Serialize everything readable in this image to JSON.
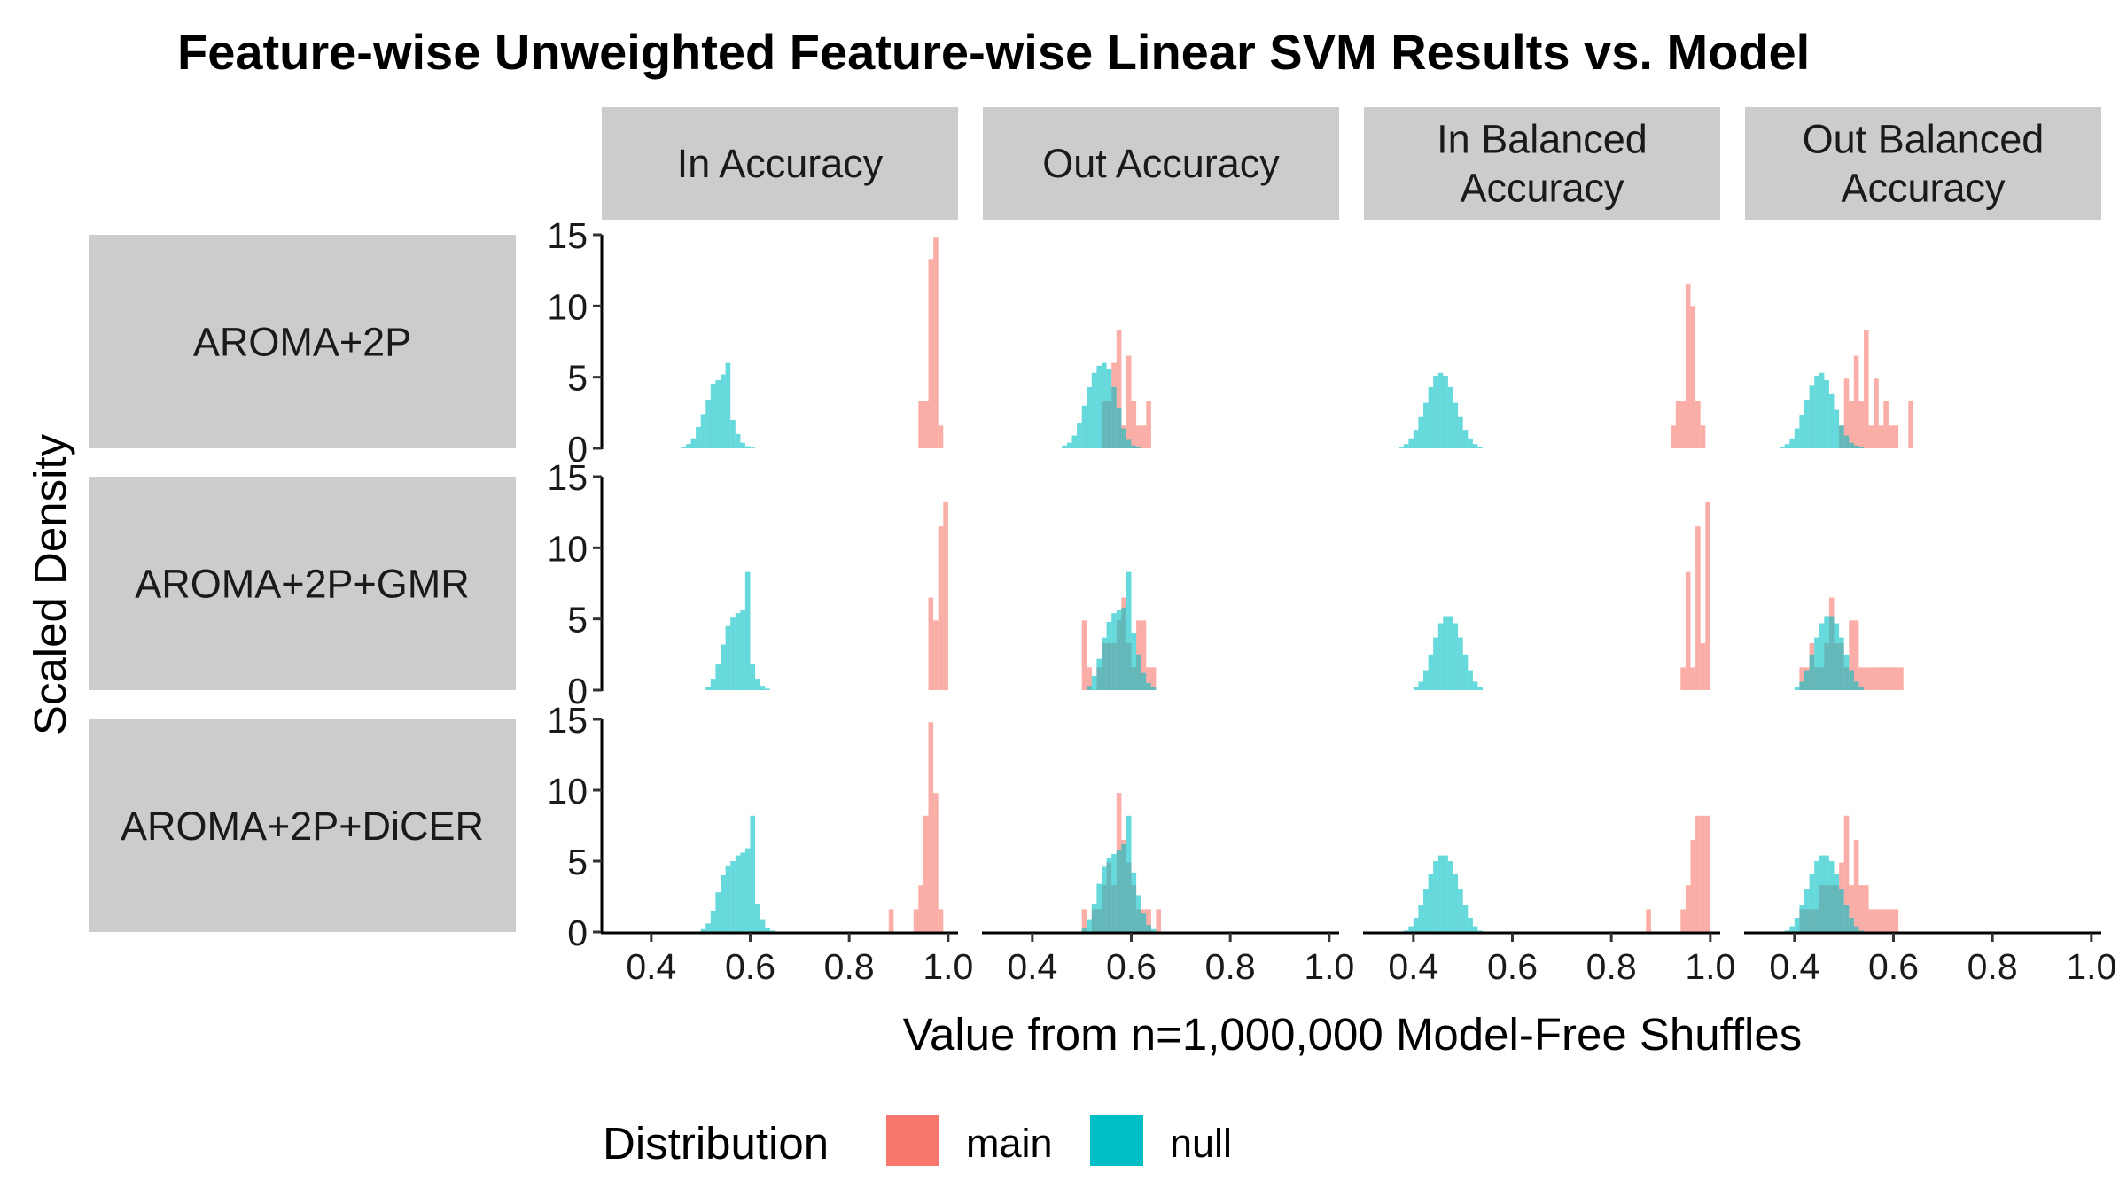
{
  "chart_data": {
    "type": "histogram",
    "title": "Feature-wise Unweighted Feature-wise Linear SVM Results vs. Model",
    "xlabel": "Value from n=1,000,000 Model-Free Shuffles",
    "ylabel": "Scaled Density",
    "xlim": [
      0.3,
      1.02
    ],
    "ylim": [
      0,
      15
    ],
    "x_ticks": [
      "0.4",
      "0.6",
      "0.8",
      "1.0"
    ],
    "y_ticks": [
      "0",
      "5",
      "10",
      "15"
    ],
    "column_facets": [
      "In Accuracy",
      "Out Accuracy",
      "In Balanced Accuracy",
      "Out Balanced Accuracy"
    ],
    "row_facets": [
      "AROMA+2P",
      "AROMA+2P+GMR",
      "AROMA+2P+DiCER"
    ],
    "legend": {
      "title": "Distribution",
      "position": "bottom",
      "entries": [
        {
          "name": "main",
          "color": "#F8766D"
        },
        {
          "name": "null",
          "color": "#00BFC4"
        }
      ]
    },
    "panels": [
      {
        "row": "AROMA+2P",
        "histograms": [
          {
            "column": "In Accuracy",
            "null": {
              "start": 0.46,
              "width": 0.01,
              "values": [
                0.1,
                0.3,
                0.7,
                1.5,
                2.4,
                3.4,
                4.5,
                4.8,
                5.2,
                6.0,
                2.0,
                1.0,
                0.4,
                0.15,
                0.05
              ]
            },
            "main": {
              "start": 0.94,
              "width": 0.01,
              "values": [
                3.3,
                3.3,
                13.3,
                14.8,
                1.6
              ]
            }
          },
          {
            "column": "Out Accuracy",
            "null": {
              "start": 0.46,
              "width": 0.01,
              "values": [
                0.2,
                0.4,
                0.9,
                1.8,
                3.0,
                4.3,
                5.3,
                5.8,
                6.0,
                5.6,
                4.3,
                2.8,
                1.4,
                0.6,
                0.2,
                0.1
              ]
            },
            "main": {
              "start": 0.54,
              "width": 0.01,
              "values": [
                3.3,
                3.3,
                6.0,
                8.3,
                1.6,
                6.5,
                3.3,
                1.6,
                1.6,
                3.3
              ]
            }
          },
          {
            "column": "In Balanced Accuracy",
            "null": {
              "start": 0.37,
              "width": 0.01,
              "values": [
                0.1,
                0.3,
                0.7,
                1.3,
                2.2,
                3.2,
                4.3,
                5.1,
                5.3,
                5.1,
                4.3,
                3.2,
                2.2,
                1.3,
                0.7,
                0.3,
                0.1
              ]
            },
            "main": {
              "start": 0.92,
              "width": 0.01,
              "values": [
                1.6,
                3.3,
                3.3,
                11.5,
                10.0,
                3.3,
                1.6
              ]
            }
          },
          {
            "column": "Out Balanced Accuracy",
            "null": {
              "start": 0.37,
              "width": 0.01,
              "values": [
                0.1,
                0.3,
                0.7,
                1.4,
                2.3,
                3.4,
                4.4,
                5.1,
                5.3,
                4.8,
                3.8,
                2.7,
                1.6,
                0.9,
                0.4,
                0.2,
                0.1
              ]
            },
            "main": {
              "start": 0.49,
              "width": 0.01,
              "values": [
                1.6,
                4.9,
                3.3,
                6.5,
                3.3,
                8.3,
                1.6,
                4.9,
                1.6,
                3.3,
                1.6,
                1.6,
                0.0,
                0.0,
                3.3
              ]
            }
          }
        ]
      },
      {
        "row": "AROMA+2P+GMR",
        "histograms": [
          {
            "column": "In Accuracy",
            "null": {
              "start": 0.51,
              "width": 0.01,
              "values": [
                0.2,
                0.8,
                1.8,
                3.2,
                4.5,
                5.1,
                5.4,
                5.6,
                8.3,
                1.8,
                0.8,
                0.3,
                0.1
              ]
            },
            "main": {
              "start": 0.96,
              "width": 0.01,
              "values": [
                6.5,
                4.9,
                11.5,
                13.2
              ]
            }
          },
          {
            "column": "Out Accuracy",
            "null": {
              "start": 0.51,
              "width": 0.01,
              "values": [
                0.3,
                1.0,
                2.2,
                3.7,
                4.8,
                5.4,
                5.6,
                5.8,
                8.3,
                4.0,
                2.5,
                1.2,
                0.5,
                0.2
              ]
            },
            "main": {
              "start": 0.5,
              "width": 0.01,
              "values": [
                4.9,
                1.6,
                0.0,
                1.6,
                3.3,
                3.3,
                3.3,
                4.9,
                6.5,
                3.3,
                1.6,
                4.9,
                4.9,
                1.6,
                1.6
              ]
            }
          },
          {
            "column": "In Balanced Accuracy",
            "null": {
              "start": 0.4,
              "width": 0.01,
              "values": [
                0.2,
                0.6,
                1.4,
                2.5,
                3.7,
                4.7,
                5.2,
                5.2,
                4.7,
                3.7,
                2.5,
                1.4,
                0.6,
                0.2
              ]
            },
            "main": {
              "start": 0.94,
              "width": 0.01,
              "values": [
                1.6,
                8.3,
                1.6,
                11.5,
                3.3,
                13.2
              ]
            }
          },
          {
            "column": "Out Balanced Accuracy",
            "null": {
              "start": 0.4,
              "width": 0.01,
              "values": [
                0.2,
                0.6,
                1.4,
                2.5,
                3.7,
                4.7,
                5.2,
                5.2,
                4.7,
                3.7,
                2.5,
                1.4,
                0.6,
                0.2
              ]
            },
            "main": {
              "start": 0.4,
              "width": 0.01,
              "values": [
                0.0,
                1.6,
                1.6,
                3.3,
                1.6,
                1.6,
                3.3,
                6.5,
                3.3,
                3.3,
                1.6,
                4.9,
                4.9,
                1.6,
                1.6,
                1.6,
                1.6,
                1.6,
                1.6,
                1.6,
                1.6,
                1.6
              ]
            }
          }
        ]
      },
      {
        "row": "AROMA+2P+DiCER",
        "histograms": [
          {
            "column": "In Accuracy",
            "null": {
              "start": 0.5,
              "width": 0.01,
              "values": [
                0.2,
                0.6,
                1.5,
                2.8,
                4.0,
                4.7,
                5.0,
                5.4,
                5.6,
                5.9,
                8.2,
                2.0,
                0.9,
                0.3,
                0.1
              ]
            },
            "main": {
              "start": 0.88,
              "width": 0.01,
              "values": [
                1.6,
                0.0,
                0.0,
                0.0,
                0.0,
                1.6,
                3.3,
                8.2,
                14.8,
                9.8,
                1.6
              ]
            }
          },
          {
            "column": "Out Accuracy",
            "null": {
              "start": 0.5,
              "width": 0.01,
              "values": [
                0.3,
                0.9,
                2.0,
                3.4,
                4.6,
                5.2,
                5.5,
                5.8,
                6.2,
                8.2,
                4.2,
                2.6,
                1.3,
                0.5,
                0.2
              ]
            },
            "main": {
              "start": 0.5,
              "width": 0.01,
              "values": [
                1.6,
                0.0,
                1.6,
                1.6,
                3.3,
                4.9,
                3.3,
                9.8,
                6.5,
                4.9,
                3.3,
                1.6,
                1.6,
                1.6,
                0.0,
                1.6
              ]
            }
          },
          {
            "column": "In Balanced Accuracy",
            "null": {
              "start": 0.38,
              "width": 0.01,
              "values": [
                0.1,
                0.4,
                1.0,
                1.9,
                3.0,
                4.1,
                5.0,
                5.4,
                5.4,
                5.0,
                4.1,
                3.0,
                1.9,
                1.0,
                0.4,
                0.1
              ]
            },
            "main": {
              "start": 0.87,
              "width": 0.01,
              "values": [
                1.6,
                0.0,
                0.0,
                0.0,
                0.0,
                0.0,
                0.0,
                1.6,
                3.3,
                6.5,
                8.2,
                8.2,
                8.2
              ]
            }
          },
          {
            "column": "Out Balanced Accuracy",
            "null": {
              "start": 0.38,
              "width": 0.01,
              "values": [
                0.1,
                0.4,
                1.0,
                1.9,
                3.0,
                4.1,
                5.0,
                5.4,
                5.4,
                5.0,
                4.1,
                3.0,
                1.9,
                1.0,
                0.4,
                0.1
              ]
            },
            "main": {
              "start": 0.4,
              "width": 0.01,
              "values": [
                0.0,
                1.6,
                1.6,
                1.6,
                1.6,
                3.3,
                3.3,
                3.3,
                3.3,
                4.9,
                8.2,
                3.3,
                6.5,
                3.3,
                3.3,
                1.6,
                1.6,
                1.6,
                1.6,
                1.6,
                1.6
              ]
            }
          }
        ]
      }
    ]
  }
}
